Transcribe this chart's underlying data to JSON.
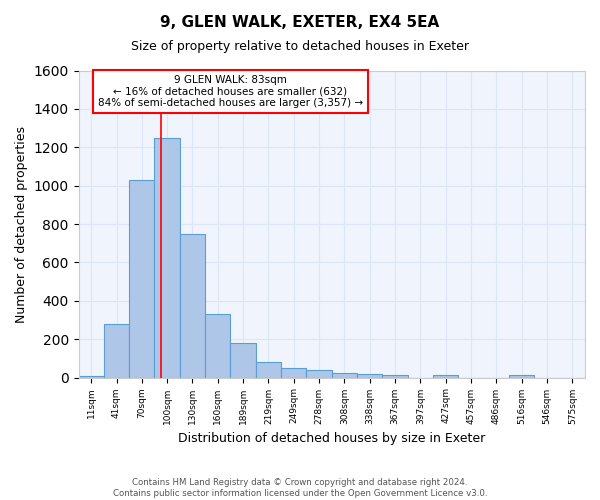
{
  "title_line1": "9, GLEN WALK, EXETER, EX4 5EA",
  "title_line2": "Size of property relative to detached houses in Exeter",
  "xlabel": "Distribution of detached houses by size in Exeter",
  "ylabel": "Number of detached properties",
  "bar_values": [
    10,
    280,
    1030,
    1250,
    750,
    330,
    180,
    80,
    50,
    40,
    25,
    20,
    15,
    0,
    15,
    0,
    0,
    15,
    0,
    0
  ],
  "bar_labels": [
    "11sqm",
    "41sqm",
    "70sqm",
    "100sqm",
    "130sqm",
    "160sqm",
    "189sqm",
    "219sqm",
    "249sqm",
    "278sqm",
    "308sqm",
    "338sqm",
    "367sqm",
    "397sqm",
    "427sqm",
    "457sqm",
    "486sqm",
    "516sqm",
    "546sqm",
    "575sqm"
  ],
  "bar_color": "#aec6e8",
  "bar_edge_color": "#5a9fd4",
  "grid_color": "#dce6f5",
  "background_color": "#f0f4fc",
  "red_line_x": 2.75,
  "annotation_text": "9 GLEN WALK: 83sqm\n← 16% of detached houses are smaller (632)\n84% of semi-detached houses are larger (3,357) →",
  "annotation_box_color": "white",
  "annotation_box_edge_color": "red",
  "ylim": [
    0,
    1600
  ],
  "yticks": [
    0,
    200,
    400,
    600,
    800,
    1000,
    1200,
    1400,
    1600
  ],
  "footer_line1": "Contains HM Land Registry data © Crown copyright and database right 2024.",
  "footer_line2": "Contains public sector information licensed under the Open Government Licence v3.0."
}
